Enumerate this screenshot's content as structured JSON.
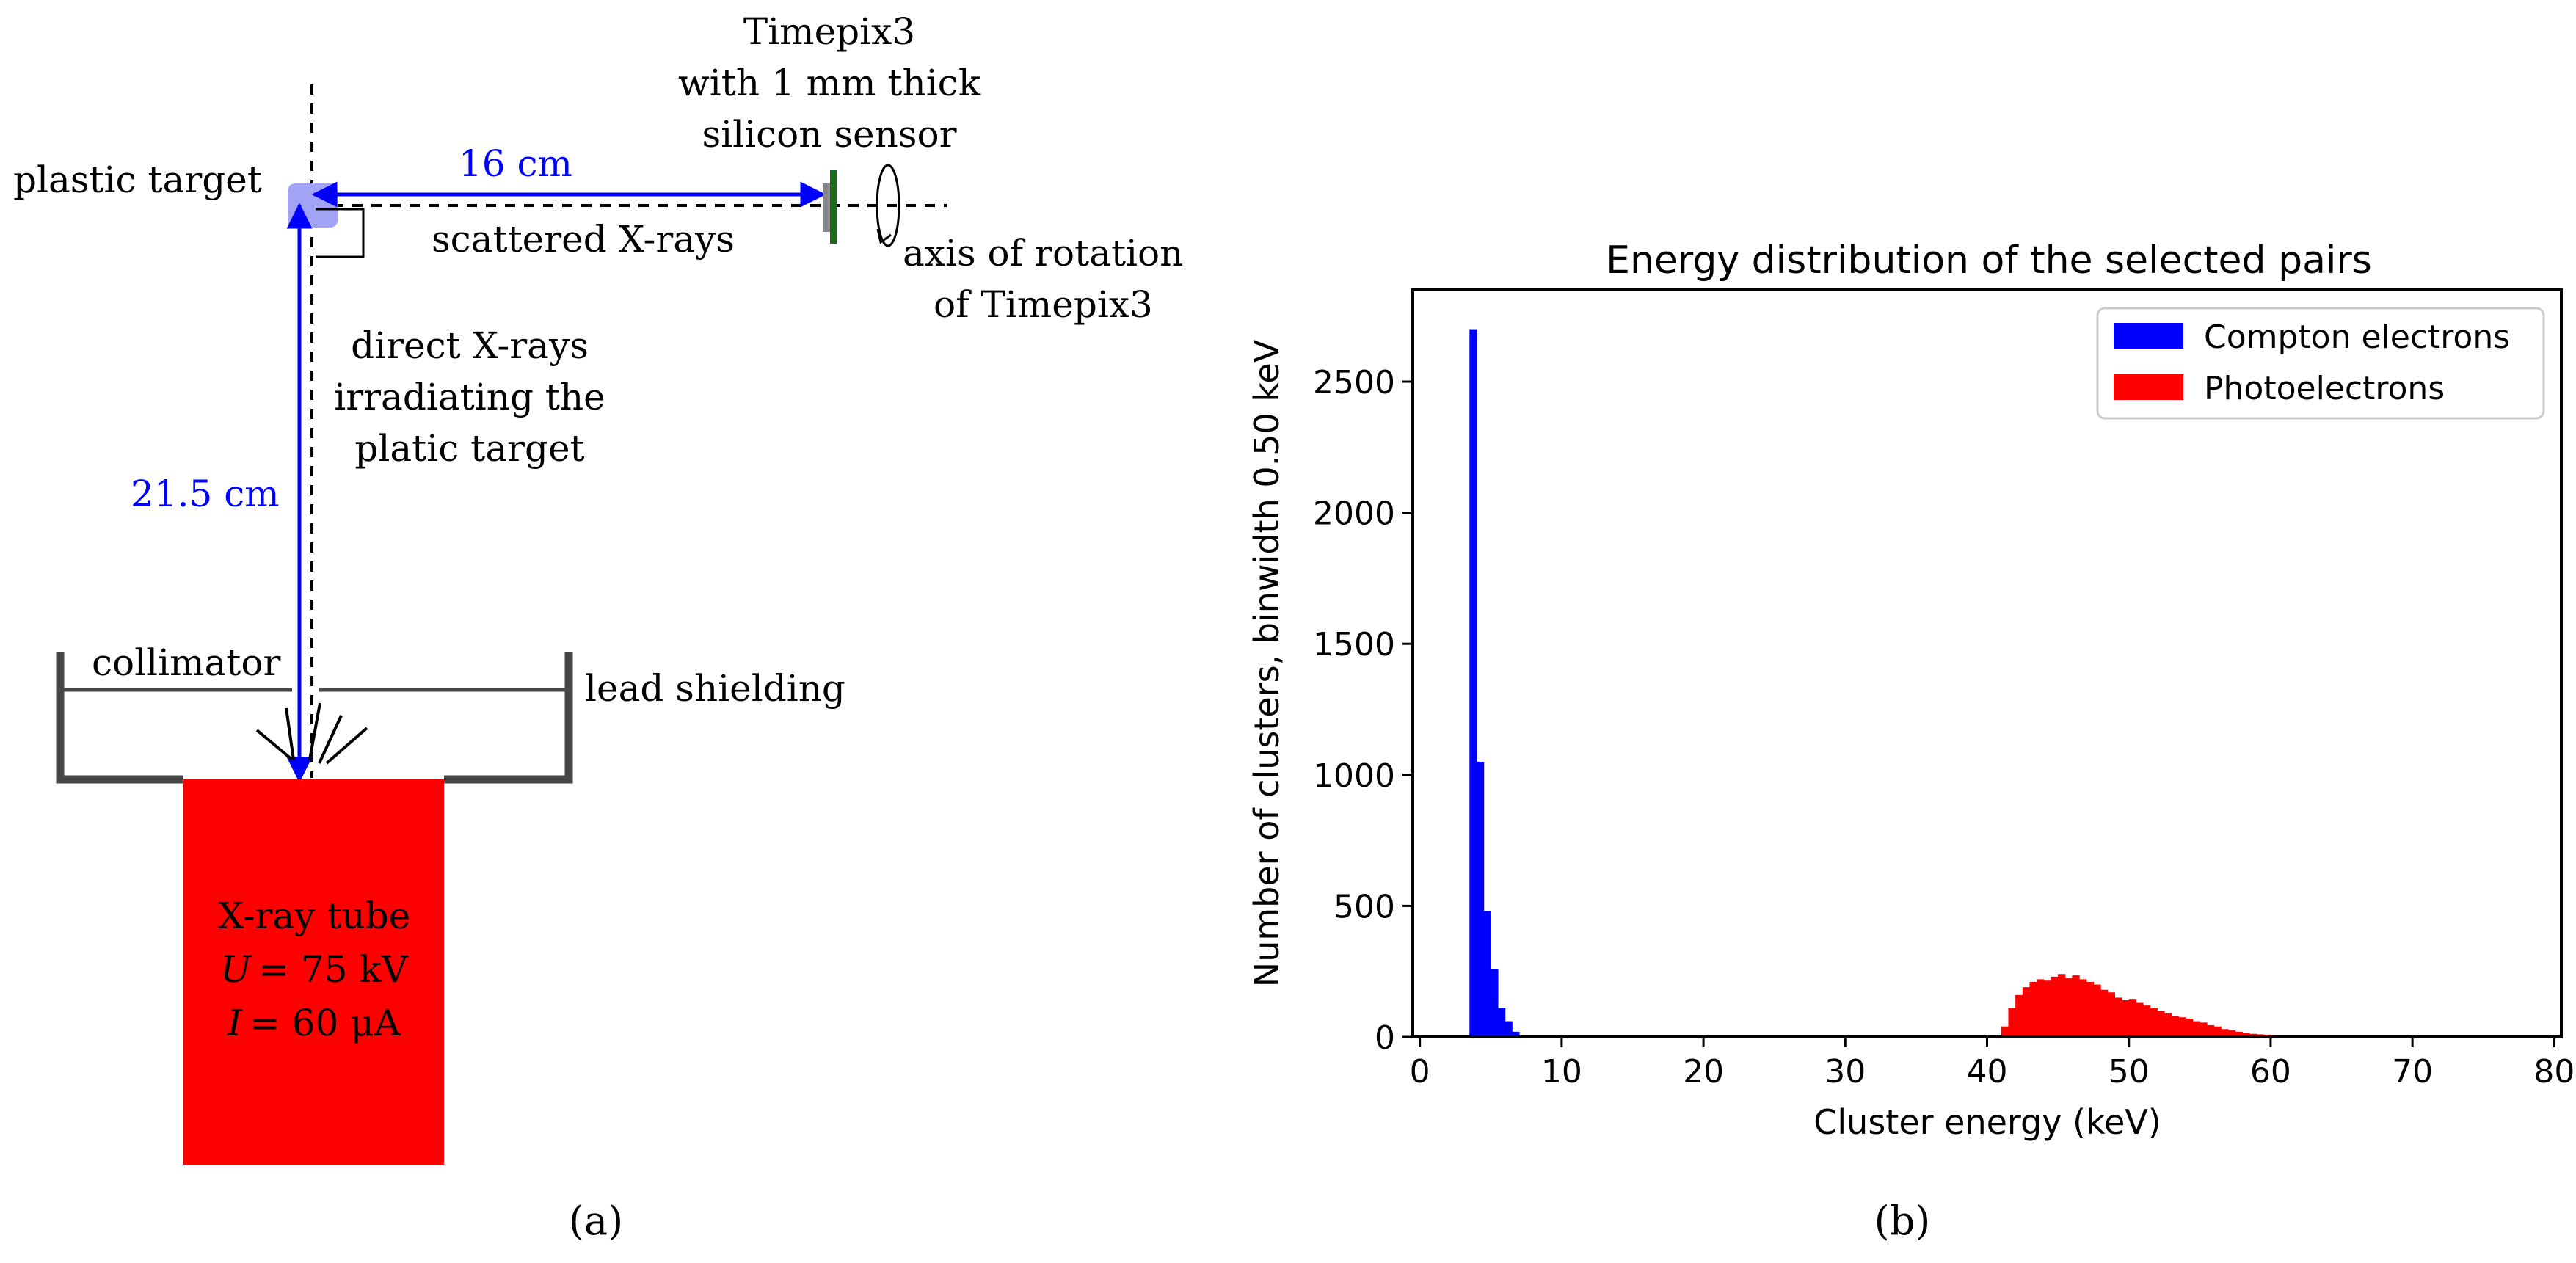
{
  "panel_a": {
    "caption": "(a)",
    "labels": {
      "plastic_target": "plastic target",
      "distance_horizontal": "16 cm",
      "distance_vertical": "21.5 cm",
      "detector_line1": "Timepix3",
      "detector_line2": "with 1 mm thick",
      "detector_line3": "silicon sensor",
      "scattered": "scattered X-rays",
      "axis_line1": "axis of rotation",
      "axis_line2": "of Timepix3",
      "direct_line1": "direct X-rays",
      "direct_line2": "irradiating the",
      "direct_line3": "platic target",
      "collimator": "collimator",
      "lead": "lead shielding",
      "tube_line1": "X-ray tube",
      "tube_U": "U",
      "tube_U_value": "= 75 kV",
      "tube_I": "I",
      "tube_I_value": "= 60 μA"
    },
    "colors": {
      "arrow": "#0000ff",
      "target": "#a3a3f5",
      "tube": "#ff0000",
      "sensor": "#1a6e1a",
      "shield": "#474747"
    }
  },
  "chart_data": {
    "type": "bar",
    "title": "Energy distribution of the selected pairs",
    "xlabel": "Cluster energy (keV)",
    "ylabel": "Number of clusters, binwidth 0.50 keV",
    "caption": "(b)",
    "bin_width": 0.5,
    "xlim": [
      -0.5,
      80.5
    ],
    "ylim": [
      0,
      2850
    ],
    "xticks": [
      0,
      10,
      20,
      30,
      40,
      50,
      60,
      70,
      80
    ],
    "yticks": [
      0,
      500,
      1000,
      1500,
      2000,
      2500
    ],
    "legend_position": "top-right",
    "series": [
      {
        "name": "Compton electrons",
        "color": "#0000ff",
        "bin_starts": [
          3.5,
          4.0,
          4.5,
          5.0,
          5.5,
          6.0,
          6.5
        ],
        "values": [
          2700,
          1050,
          480,
          260,
          110,
          60,
          20
        ]
      },
      {
        "name": "Photoelectrons",
        "color": "#ff0000",
        "bin_starts": [
          41.0,
          41.5,
          42.0,
          42.5,
          43.0,
          43.5,
          44.0,
          44.5,
          45.0,
          45.5,
          46.0,
          46.5,
          47.0,
          47.5,
          48.0,
          48.5,
          49.0,
          49.5,
          50.0,
          50.5,
          51.0,
          51.5,
          52.0,
          52.5,
          53.0,
          53.5,
          54.0,
          54.5,
          55.0,
          55.5,
          56.0,
          56.5,
          57.0,
          57.5,
          58.0,
          58.5,
          59.0,
          59.5,
          60.0,
          60.5,
          61.0,
          61.5,
          62.0,
          62.5
        ],
        "values": [
          40,
          110,
          160,
          190,
          210,
          220,
          215,
          230,
          240,
          225,
          235,
          220,
          210,
          200,
          180,
          170,
          150,
          140,
          145,
          130,
          120,
          110,
          100,
          90,
          80,
          75,
          70,
          60,
          55,
          45,
          40,
          30,
          25,
          20,
          15,
          12,
          10,
          8,
          6,
          5,
          4,
          3,
          2,
          1
        ]
      }
    ]
  }
}
